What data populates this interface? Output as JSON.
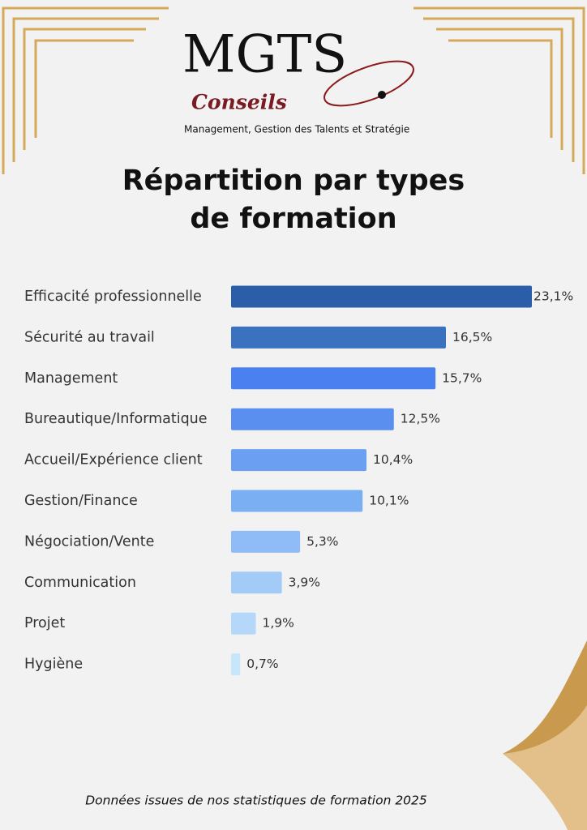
{
  "chart_data": {
    "type": "bar",
    "orientation": "horizontal",
    "brand": {
      "name": "MGTS",
      "sub": "Conseils",
      "tagline": "Management, Gestion des Talents et Stratégie"
    },
    "title": "Répartition par types de formation",
    "categories": [
      "Efficacité professionnelle",
      "Sécurité au travail",
      "Management",
      "Bureautique/Informatique",
      "Accueil/Expérience client",
      "Gestion/Finance",
      "Négociation/Vente",
      "Communication",
      "Projet",
      "Hygiène"
    ],
    "values": [
      23.1,
      16.5,
      15.7,
      12.5,
      10.4,
      10.1,
      5.3,
      3.9,
      1.9,
      0.7
    ],
    "value_labels": [
      "23,1%",
      "16,5%",
      "15,7%",
      "12,5%",
      "10,4%",
      "10,1%",
      "5,3%",
      "3,9%",
      "1,9%",
      "0,7%"
    ],
    "colors": [
      "#2b5ea8",
      "#3a72c0",
      "#4a80f0",
      "#5a8ff0",
      "#6b9ff2",
      "#7baff4",
      "#8fbcf6",
      "#a3cbf8",
      "#b5d8fa",
      "#c8e6fb"
    ],
    "footnote": "Données issues de nos statistiques de formation 2025"
  }
}
